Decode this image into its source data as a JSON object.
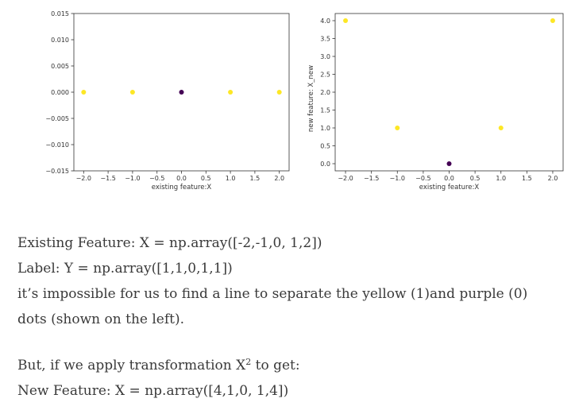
{
  "chart_data": [
    {
      "type": "scatter",
      "title": "",
      "xlabel": "existing feature:X",
      "ylabel": "",
      "xlim": [
        -2.2,
        2.2
      ],
      "ylim": [
        -0.015,
        0.015
      ],
      "x_ticks": [
        -2.0,
        -1.5,
        -1.0,
        -0.5,
        0.0,
        0.5,
        1.0,
        1.5,
        2.0
      ],
      "x_tick_labels": [
        "−2.0",
        "−1.5",
        "−1.0",
        "−0.5",
        "0.0",
        "0.5",
        "1.0",
        "1.5",
        "2.0"
      ],
      "y_ticks": [
        0.015,
        0.01,
        0.005,
        0.0,
        -0.005,
        -0.01,
        -0.015
      ],
      "y_tick_labels": [
        "0.015",
        "0.010",
        "0.005",
        "0.000",
        "−0.005",
        "−0.010",
        "−0.015"
      ],
      "grid": false,
      "x": [
        -2,
        -1,
        0,
        1,
        2
      ],
      "y": [
        0,
        0,
        0,
        0,
        0
      ],
      "labels": [
        1,
        1,
        0,
        1,
        1
      ]
    },
    {
      "type": "scatter",
      "title": "",
      "xlabel": "existing feature:X",
      "ylabel": "new feature: X_new",
      "xlim": [
        -2.2,
        2.2
      ],
      "ylim": [
        -0.2,
        4.2
      ],
      "x_ticks": [
        -2.0,
        -1.5,
        -1.0,
        -0.5,
        0.0,
        0.5,
        1.0,
        1.5,
        2.0
      ],
      "x_tick_labels": [
        "−2.0",
        "−1.5",
        "−1.0",
        "−0.5",
        "0.0",
        "0.5",
        "1.0",
        "1.5",
        "2.0"
      ],
      "y_ticks": [
        4.0,
        3.5,
        3.0,
        2.5,
        2.0,
        1.5,
        1.0,
        0.5,
        0.0
      ],
      "y_tick_labels": [
        "4.0",
        "3.5",
        "3.0",
        "2.5",
        "2.0",
        "1.5",
        "1.0",
        "0.5",
        "0.0"
      ],
      "grid": false,
      "x": [
        -2,
        -1,
        0,
        1,
        2
      ],
      "y": [
        4,
        1,
        0,
        1,
        4
      ],
      "labels": [
        1,
        1,
        0,
        1,
        1
      ]
    }
  ],
  "colors": {
    "class_1": "#fde725",
    "class_0": "#440154",
    "axis": "#333333",
    "text": "#3a3a3a"
  },
  "text": {
    "line1": "Existing Feature: X = np.array([-2,-1,0, 1,2])",
    "line2": "Label: Y = np.array([1,1,0,1,1])",
    "line3": "it’s impossible for us to find a line to separate the yellow (1)and purple (0)",
    "line4": "dots (shown on the left).",
    "line5_pre": "But, if we apply transformation X",
    "line5_sup": "2",
    "line5_post": " to get:",
    "line6": "New Feature: X = np.array([4,1,0, 1,4])"
  }
}
